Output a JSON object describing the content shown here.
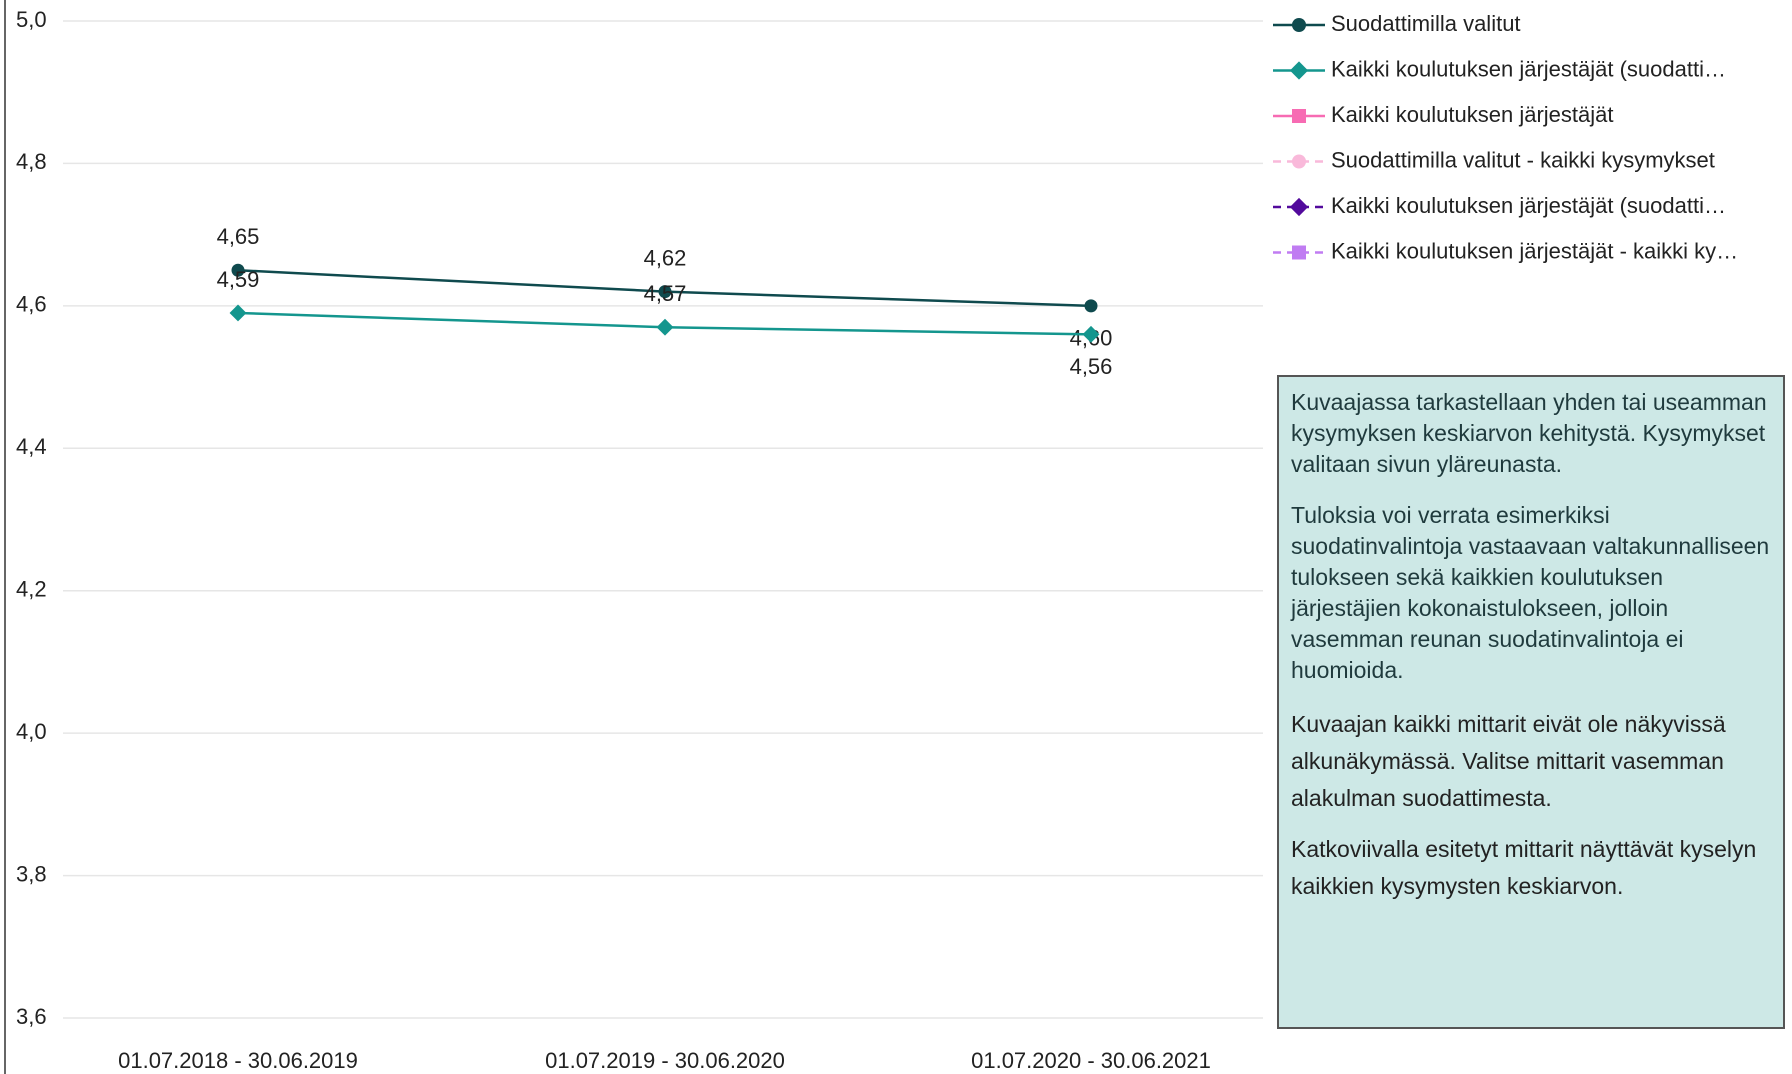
{
  "chart_data": {
    "type": "line",
    "categories": [
      "01.07.2018 - 30.06.2019",
      "01.07.2019 - 30.06.2020",
      "01.07.2020 - 30.06.2021"
    ],
    "series": [
      {
        "name": "Suodattimilla valitut",
        "color": "#0f4a4e",
        "marker": "circle",
        "dashed": false,
        "values": [
          4.65,
          4.62,
          4.6
        ],
        "value_labels": [
          "4,65",
          "4,62",
          "4,60"
        ]
      },
      {
        "name": "Kaikki koulutuksen järjestäjät (suodatti…",
        "color": "#14968e",
        "marker": "diamond",
        "dashed": false,
        "values": [
          4.59,
          4.57,
          4.56
        ],
        "value_labels": [
          "4,59",
          "4,57",
          "4,56"
        ]
      },
      {
        "name": "Kaikki koulutuksen järjestäjät",
        "color": "#f76bb3",
        "marker": "square",
        "dashed": false,
        "values": [
          null,
          null,
          null
        ]
      },
      {
        "name": "Suodattimilla valitut - kaikki kysymykset",
        "color": "#f9b9da",
        "marker": "circle",
        "dashed": true,
        "values": [
          null,
          null,
          null
        ]
      },
      {
        "name": "Kaikki koulutuksen järjestäjät (suodatti…",
        "color": "#520a9c",
        "marker": "diamond",
        "dashed": true,
        "values": [
          null,
          null,
          null
        ]
      },
      {
        "name": "Kaikki koulutuksen järjestäjät - kaikki ky…",
        "color": "#c07cf2",
        "marker": "square",
        "dashed": true,
        "values": [
          null,
          null,
          null
        ]
      }
    ],
    "ylim": [
      3.6,
      5.0
    ],
    "yticks": [
      {
        "value": 3.6,
        "label": "3,6"
      },
      {
        "value": 3.8,
        "label": "3,8"
      },
      {
        "value": 4.0,
        "label": "4,0"
      },
      {
        "value": 4.2,
        "label": "4,2"
      },
      {
        "value": 4.4,
        "label": "4,4"
      },
      {
        "value": 4.6,
        "label": "4,6"
      },
      {
        "value": 4.8,
        "label": "4,8"
      },
      {
        "value": 5.0,
        "label": "5,0"
      }
    ],
    "grid": true
  },
  "info_box": {
    "paragraphs": [
      "Kuvaajassa tarkastellaan yhden tai useamman kysymyksen keskiarvon kehitystä. Kysymykset valitaan sivun yläreunasta.",
      "Tuloksia voi verrata esimerkiksi suodatinvalintoja vastaavaan valtakunnalliseen tulokseen sekä kaikkien koulutuksen järjestäjien kokonaistulokseen, jolloin vasemman reunan suodatinvalintoja ei huomioida.",
      "Kuvaajan kaikki mittarit eivät ole näkyvissä alkunäkymässä. Valitse mittarit vasemman alakulman suodattimesta.",
      "Katkoviivalla esitetyt mittarit näyttävät kyselyn kaikkien kysymysten keskiarvon."
    ]
  }
}
